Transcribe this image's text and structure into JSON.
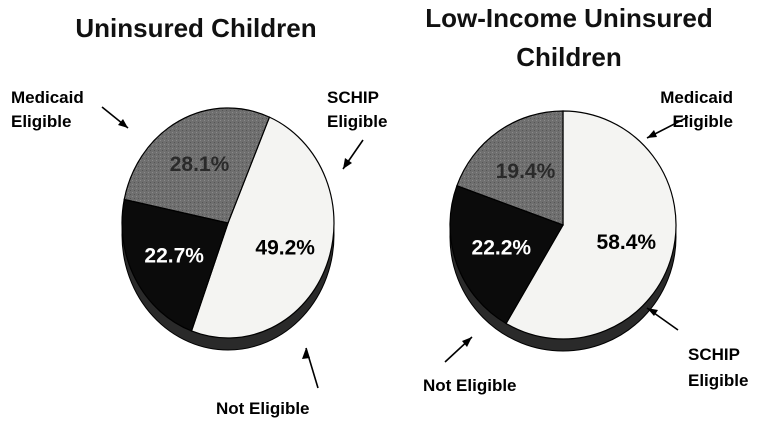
{
  "chart_data": [
    {
      "type": "pie",
      "title": "Uninsured Children",
      "slices": [
        {
          "label": "Medicaid Eligible",
          "label_lines": [
            "Medicaid",
            "Eligible"
          ],
          "value": 49.2,
          "pct_text": "49.2%",
          "color": "#f4f4f2",
          "text_color": "#000000"
        },
        {
          "label": "SCHIP Eligible",
          "label_lines": [
            "SCHIP",
            "Eligible"
          ],
          "value": 22.7,
          "pct_text": "22.7%",
          "color": "#0b0b0b",
          "text_color": "#ffffff"
        },
        {
          "label": "Not Eligible",
          "label_lines": [
            "Not Eligible"
          ],
          "value": 28.1,
          "pct_text": "28.1%",
          "color": "#6f6f6f",
          "text_color": "#2a2a2a"
        }
      ]
    },
    {
      "type": "pie",
      "title": "Low-Income Uninsured Children",
      "title_lines": [
        "Low-Income Uninsured",
        "Children"
      ],
      "slices": [
        {
          "label": "Medicaid Eligible",
          "label_lines": [
            "Medicaid",
            "Eligible"
          ],
          "value": 58.4,
          "pct_text": "58.4%",
          "color": "#f4f4f2",
          "text_color": "#000000"
        },
        {
          "label": "SCHIP Eligible",
          "label_lines": [
            "SCHIP",
            "Eligible"
          ],
          "value": 22.2,
          "pct_text": "22.2%",
          "color": "#0b0b0b",
          "text_color": "#ffffff"
        },
        {
          "label": "Not Eligible",
          "label_lines": [
            "Not Eligible"
          ],
          "value": 19.4,
          "pct_text": "19.4%",
          "color": "#6f6f6f",
          "text_color": "#2a2a2a"
        }
      ]
    }
  ]
}
